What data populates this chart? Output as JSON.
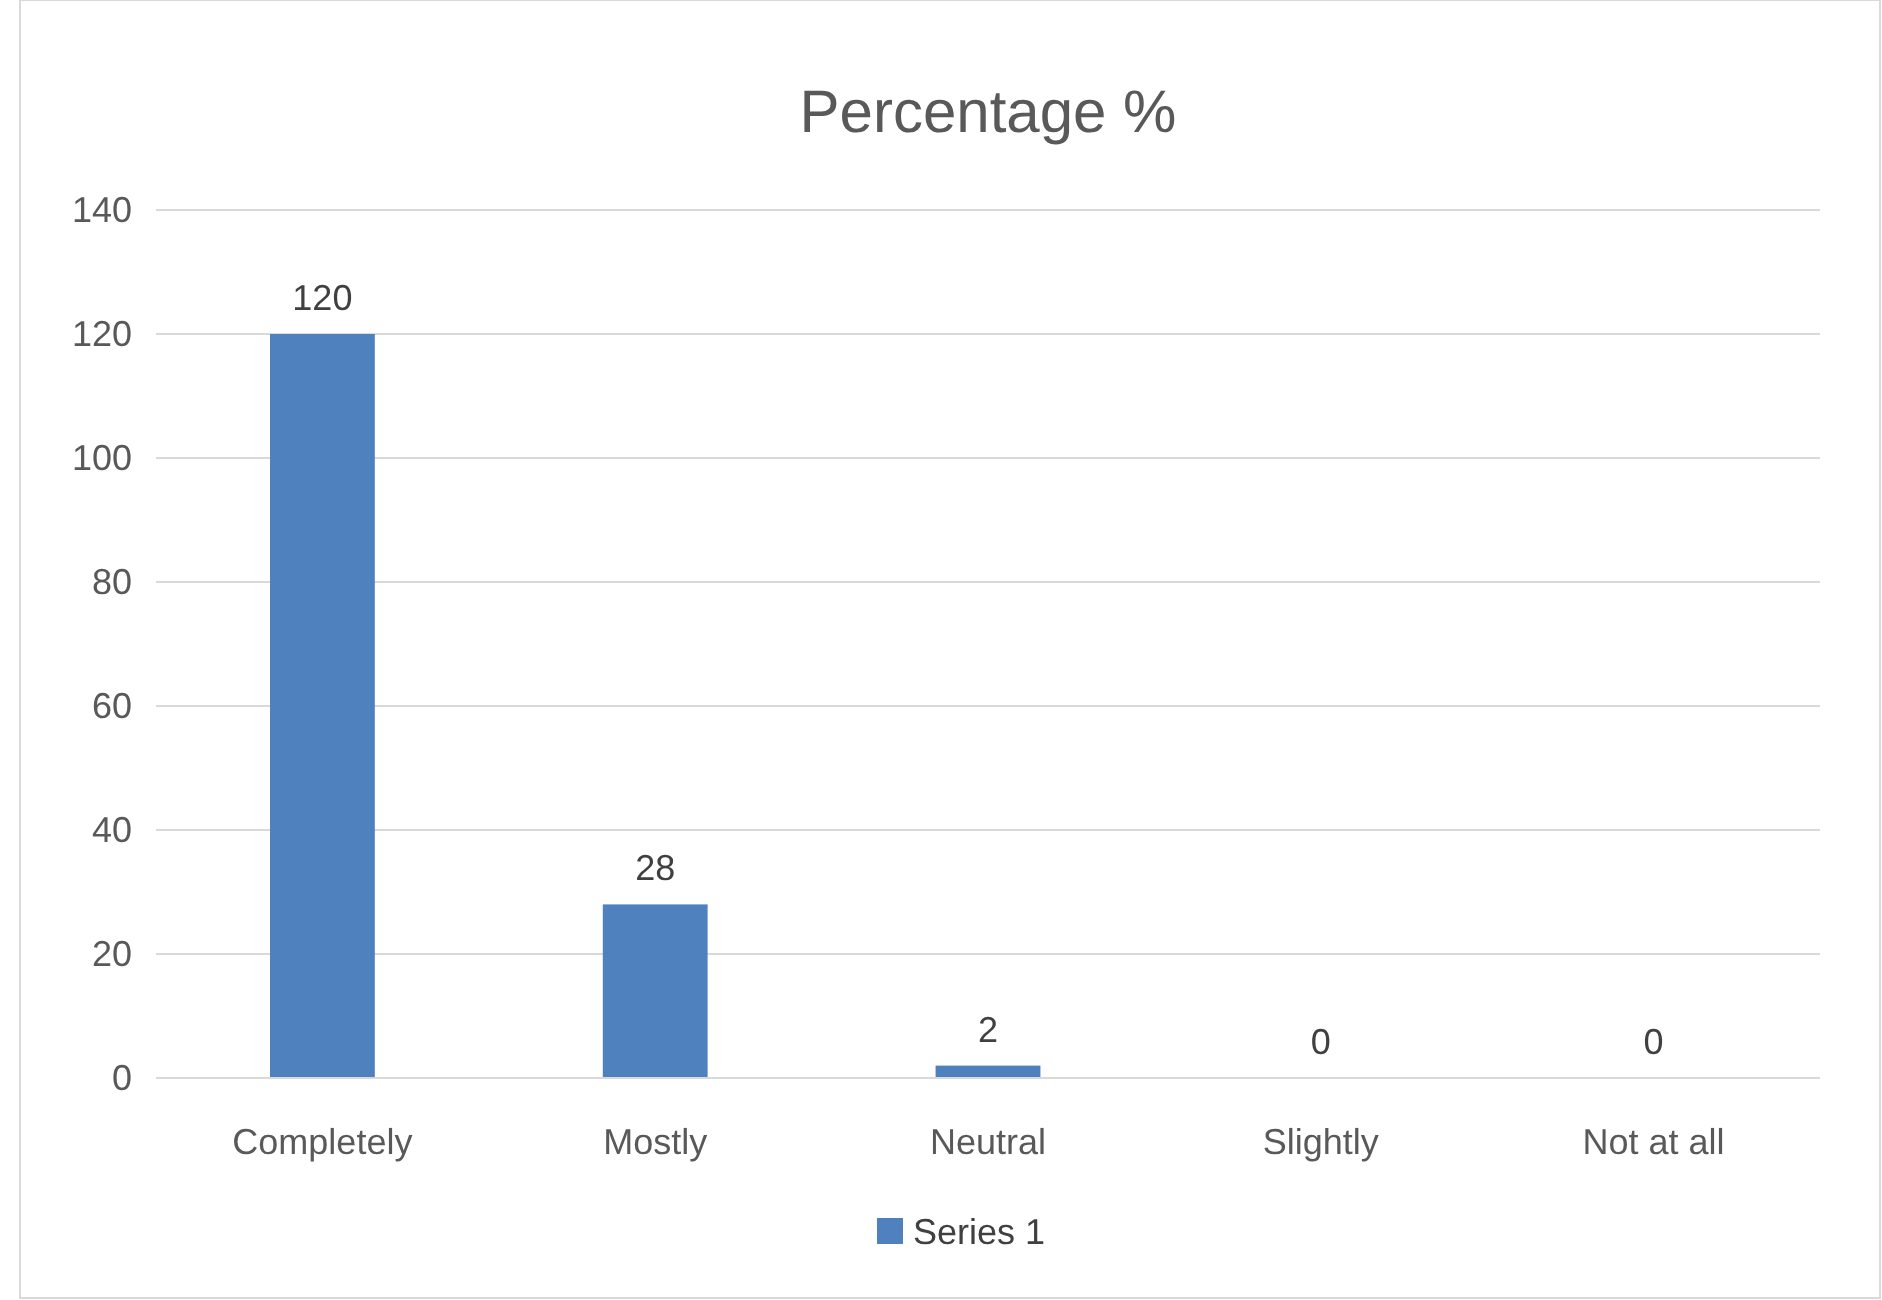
{
  "chart_data": {
    "type": "bar",
    "title": "Percentage %",
    "categories": [
      "Completely",
      "Mostly",
      "Neutral",
      "Slightly",
      "Not at all"
    ],
    "series": [
      {
        "name": "Series 1",
        "color": "#4e81bd",
        "values": [
          120,
          28,
          2,
          0,
          0
        ]
      }
    ],
    "ylim": [
      0,
      140
    ],
    "yticks": [
      0,
      20,
      40,
      60,
      80,
      100,
      120,
      140
    ],
    "grid": "y",
    "legend": "bottom",
    "data_labels": true
  }
}
